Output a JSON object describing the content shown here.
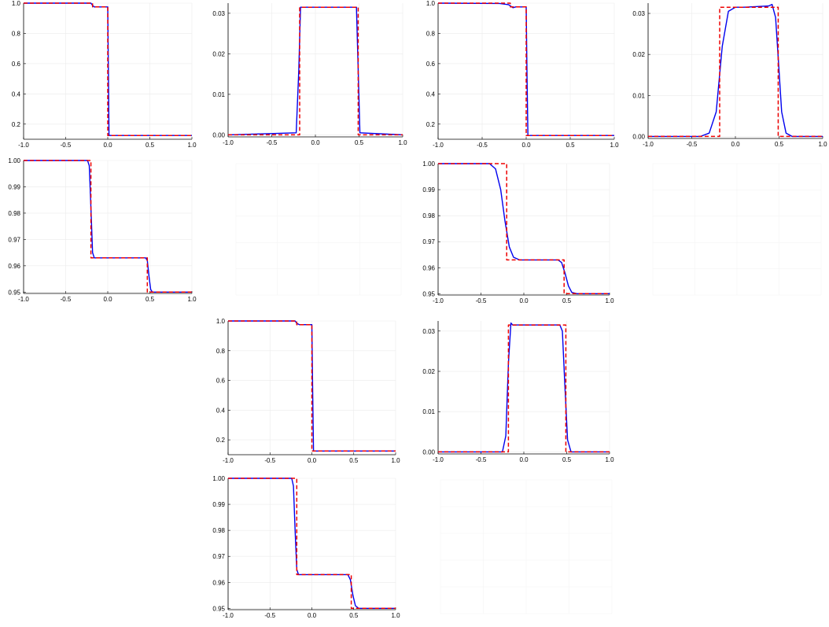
{
  "colors": {
    "numerical": "#0000ee",
    "exact": "#ee0000",
    "grid": "#ebebeb"
  },
  "chart_data": [
    {
      "id": "r1c1",
      "type": "line",
      "x_ticks": [
        "-1.0",
        "-0.5",
        "0.0",
        "0.5",
        "1.0"
      ],
      "y_ticks": [
        "0.2",
        "0.4",
        "0.6",
        "0.8",
        "1.0"
      ],
      "xlim": [
        -1.0,
        1.0
      ],
      "ylim": [
        0.1,
        1.0
      ],
      "y_tick_values": [
        0.2,
        0.4,
        0.6,
        0.8,
        1.0
      ],
      "series": [
        {
          "style": "solid",
          "color": "#0000ee",
          "x": [
            -1.0,
            -0.2,
            -0.18,
            -0.16,
            0.0,
            0.008,
            0.015,
            1.0
          ],
          "y": [
            1.0,
            1.0,
            0.985,
            0.975,
            0.975,
            0.5,
            0.125,
            0.125
          ]
        },
        {
          "style": "dashed",
          "color": "#ee0000",
          "x": [
            -1.0,
            -0.18,
            -0.18,
            0.0,
            0.0,
            1.0
          ],
          "y": [
            1.0,
            1.0,
            0.975,
            0.975,
            0.125,
            0.125
          ]
        }
      ]
    },
    {
      "id": "r1c2",
      "type": "line",
      "x_ticks": [
        "-1.0",
        "-0.5",
        "0.0",
        "0.5",
        "1.0"
      ],
      "y_ticks": [
        "0.00",
        "0.01",
        "0.02",
        "0.03"
      ],
      "xlim": [
        -1.0,
        1.0
      ],
      "ylim": [
        -0.0005,
        0.0325
      ],
      "y_tick_values": [
        0.0,
        0.01,
        0.02,
        0.03
      ],
      "series": [
        {
          "style": "solid",
          "color": "#0000ee",
          "x": [
            -1.0,
            -0.22,
            -0.19,
            -0.17,
            0.47,
            0.49,
            0.51,
            1.0
          ],
          "y": [
            0.0,
            0.0005,
            0.016,
            0.0315,
            0.0315,
            0.016,
            0.0005,
            0.0
          ]
        },
        {
          "style": "dashed",
          "color": "#ee0000",
          "x": [
            -1.0,
            -0.18,
            -0.18,
            0.49,
            0.49,
            1.0
          ],
          "y": [
            0.0,
            0.0,
            0.0315,
            0.0315,
            0.0,
            0.0
          ]
        }
      ]
    },
    {
      "id": "r1c3",
      "type": "line",
      "x_ticks": [
        "-1.0",
        "-0.5",
        "0.0",
        "0.5",
        "1.0"
      ],
      "y_ticks": [
        "0.2",
        "0.4",
        "0.6",
        "0.8",
        "1.0"
      ],
      "xlim": [
        -1.0,
        1.0
      ],
      "ylim": [
        0.1,
        1.0
      ],
      "y_tick_values": [
        0.2,
        0.4,
        0.6,
        0.8,
        1.0
      ],
      "series": [
        {
          "style": "solid",
          "color": "#0000ee",
          "x": [
            -1.0,
            -0.3,
            -0.2,
            -0.15,
            -0.12,
            0.0,
            0.01,
            0.02,
            1.0
          ],
          "y": [
            1.0,
            0.998,
            0.99,
            0.97,
            0.975,
            0.975,
            0.5,
            0.125,
            0.125
          ]
        },
        {
          "style": "dashed",
          "color": "#ee0000",
          "x": [
            -1.0,
            -0.18,
            -0.18,
            0.0,
            0.0,
            1.0
          ],
          "y": [
            1.0,
            1.0,
            0.975,
            0.975,
            0.125,
            0.125
          ]
        }
      ]
    },
    {
      "id": "r1c4",
      "type": "line",
      "x_ticks": [
        "-1.0",
        "-0.5",
        "0.0",
        "0.5",
        "1.0"
      ],
      "y_ticks": [
        "0.00",
        "0.01",
        "0.02",
        "0.03"
      ],
      "xlim": [
        -1.0,
        1.0
      ],
      "ylim": [
        -0.0005,
        0.0325
      ],
      "y_tick_values": [
        0.0,
        0.01,
        0.02,
        0.03
      ],
      "series": [
        {
          "style": "solid",
          "color": "#0000ee",
          "x": [
            -1.0,
            -0.4,
            -0.3,
            -0.22,
            -0.15,
            -0.08,
            0.0,
            0.1,
            0.38,
            0.42,
            0.46,
            0.5,
            0.53,
            0.58,
            0.65,
            1.0
          ],
          "y": [
            0.0,
            0.0,
            0.0008,
            0.006,
            0.022,
            0.0305,
            0.0315,
            0.0315,
            0.0318,
            0.0322,
            0.029,
            0.016,
            0.006,
            0.0008,
            0.0,
            0.0
          ]
        },
        {
          "style": "dashed",
          "color": "#ee0000",
          "x": [
            -1.0,
            -0.18,
            -0.18,
            0.49,
            0.49,
            1.0
          ],
          "y": [
            0.0,
            0.0,
            0.0315,
            0.0315,
            0.0,
            0.0
          ]
        }
      ]
    },
    {
      "id": "r2c1",
      "type": "line",
      "x_ticks": [
        "-1.0",
        "-0.5",
        "0.0",
        "0.5",
        "1.0"
      ],
      "y_ticks": [
        "0.95",
        "0.96",
        "0.97",
        "0.98",
        "0.99",
        "1.00"
      ],
      "xlim": [
        -1.0,
        1.0
      ],
      "ylim": [
        0.9495,
        1.0
      ],
      "y_tick_values": [
        0.95,
        0.96,
        0.97,
        0.98,
        0.99,
        1.0
      ],
      "series": [
        {
          "style": "solid",
          "color": "#0000ee",
          "x": [
            -1.0,
            -0.24,
            -0.22,
            -0.2,
            -0.18,
            -0.16,
            0.45,
            0.47,
            0.49,
            0.51,
            0.53,
            1.0
          ],
          "y": [
            1.0,
            1.0,
            0.998,
            0.982,
            0.965,
            0.963,
            0.963,
            0.962,
            0.956,
            0.951,
            0.95,
            0.95
          ]
        },
        {
          "style": "dashed",
          "color": "#ee0000",
          "x": [
            -1.0,
            -0.2,
            -0.2,
            0.47,
            0.47,
            1.0
          ],
          "y": [
            1.0,
            1.0,
            0.963,
            0.963,
            0.95,
            0.95
          ]
        }
      ]
    },
    {
      "id": "r2c3",
      "type": "line",
      "x_ticks": [
        "-1.0",
        "-0.5",
        "0.0",
        "0.5",
        "1.0"
      ],
      "y_ticks": [
        "0.95",
        "0.96",
        "0.97",
        "0.98",
        "0.99",
        "1.00"
      ],
      "xlim": [
        -1.0,
        1.0
      ],
      "ylim": [
        0.9495,
        1.0
      ],
      "y_tick_values": [
        0.95,
        0.96,
        0.97,
        0.98,
        0.99,
        1.0
      ],
      "series": [
        {
          "style": "solid",
          "color": "#0000ee",
          "x": [
            -1.0,
            -0.4,
            -0.33,
            -0.27,
            -0.22,
            -0.17,
            -0.12,
            -0.05,
            0.4,
            0.44,
            0.48,
            0.52,
            0.56,
            0.62,
            1.0
          ],
          "y": [
            1.0,
            1.0,
            0.998,
            0.99,
            0.978,
            0.968,
            0.964,
            0.963,
            0.963,
            0.962,
            0.958,
            0.953,
            0.9505,
            0.95,
            0.95
          ]
        },
        {
          "style": "dashed",
          "color": "#ee0000",
          "x": [
            -1.0,
            -0.2,
            -0.2,
            0.47,
            0.47,
            1.0
          ],
          "y": [
            1.0,
            1.0,
            0.963,
            0.963,
            0.95,
            0.95
          ]
        }
      ]
    },
    {
      "id": "r3c2",
      "type": "line",
      "x_ticks": [
        "-1.0",
        "-0.5",
        "0.0",
        "0.5",
        "1.0"
      ],
      "y_ticks": [
        "0.2",
        "0.4",
        "0.6",
        "0.8",
        "1.0"
      ],
      "xlim": [
        -1.0,
        1.0
      ],
      "ylim": [
        0.1,
        1.0
      ],
      "y_tick_values": [
        0.2,
        0.4,
        0.6,
        0.8,
        1.0
      ],
      "series": [
        {
          "style": "solid",
          "color": "#0000ee",
          "x": [
            -1.0,
            -0.2,
            -0.18,
            -0.15,
            0.0,
            0.01,
            0.02,
            1.0
          ],
          "y": [
            1.0,
            1.0,
            0.985,
            0.975,
            0.975,
            0.5,
            0.125,
            0.125
          ]
        },
        {
          "style": "dashed",
          "color": "#ee0000",
          "x": [
            -1.0,
            -0.18,
            -0.18,
            0.0,
            0.0,
            1.0
          ],
          "y": [
            1.0,
            1.0,
            0.975,
            0.975,
            0.125,
            0.125
          ]
        }
      ]
    },
    {
      "id": "r3c3",
      "type": "line",
      "x_ticks": [
        "-1.0",
        "-0.5",
        "0.0",
        "0.5",
        "1.0"
      ],
      "y_ticks": [
        "0.00",
        "0.01",
        "0.02",
        "0.03"
      ],
      "xlim": [
        -1.0,
        1.0
      ],
      "ylim": [
        -0.0005,
        0.0325
      ],
      "y_tick_values": [
        0.0,
        0.01,
        0.02,
        0.03
      ],
      "series": [
        {
          "style": "solid",
          "color": "#0000ee",
          "x": [
            -1.0,
            -0.25,
            -0.21,
            -0.18,
            -0.15,
            -0.13,
            0.42,
            0.45,
            0.48,
            0.51,
            0.55,
            1.0
          ],
          "y": [
            0.0,
            0.0,
            0.004,
            0.022,
            0.032,
            0.0315,
            0.0315,
            0.03,
            0.016,
            0.003,
            0.0,
            0.0
          ]
        },
        {
          "style": "dashed",
          "color": "#ee0000",
          "x": [
            -1.0,
            -0.18,
            -0.18,
            0.49,
            0.49,
            1.0
          ],
          "y": [
            0.0,
            0.0,
            0.0315,
            0.0315,
            0.0,
            0.0
          ]
        }
      ]
    },
    {
      "id": "r4c2",
      "type": "line",
      "x_ticks": [
        "-1.0",
        "-0.5",
        "0.0",
        "0.5",
        "1.0"
      ],
      "y_ticks": [
        "0.95",
        "0.96",
        "0.97",
        "0.98",
        "0.99",
        "1.00"
      ],
      "xlim": [
        -1.0,
        1.0
      ],
      "ylim": [
        0.9495,
        1.0
      ],
      "y_tick_values": [
        0.95,
        0.96,
        0.97,
        0.98,
        0.99,
        1.0
      ],
      "series": [
        {
          "style": "solid",
          "color": "#0000ee",
          "x": [
            -1.0,
            -0.24,
            -0.22,
            -0.2,
            -0.18,
            -0.16,
            0.43,
            0.46,
            0.49,
            0.52,
            0.56,
            1.0
          ],
          "y": [
            1.0,
            1.0,
            0.997,
            0.98,
            0.965,
            0.963,
            0.963,
            0.961,
            0.955,
            0.951,
            0.95,
            0.95
          ]
        },
        {
          "style": "dashed",
          "color": "#ee0000",
          "x": [
            -1.0,
            -0.18,
            -0.18,
            0.47,
            0.47,
            1.0
          ],
          "y": [
            1.0,
            1.0,
            0.963,
            0.963,
            0.95,
            0.95
          ]
        }
      ]
    }
  ]
}
